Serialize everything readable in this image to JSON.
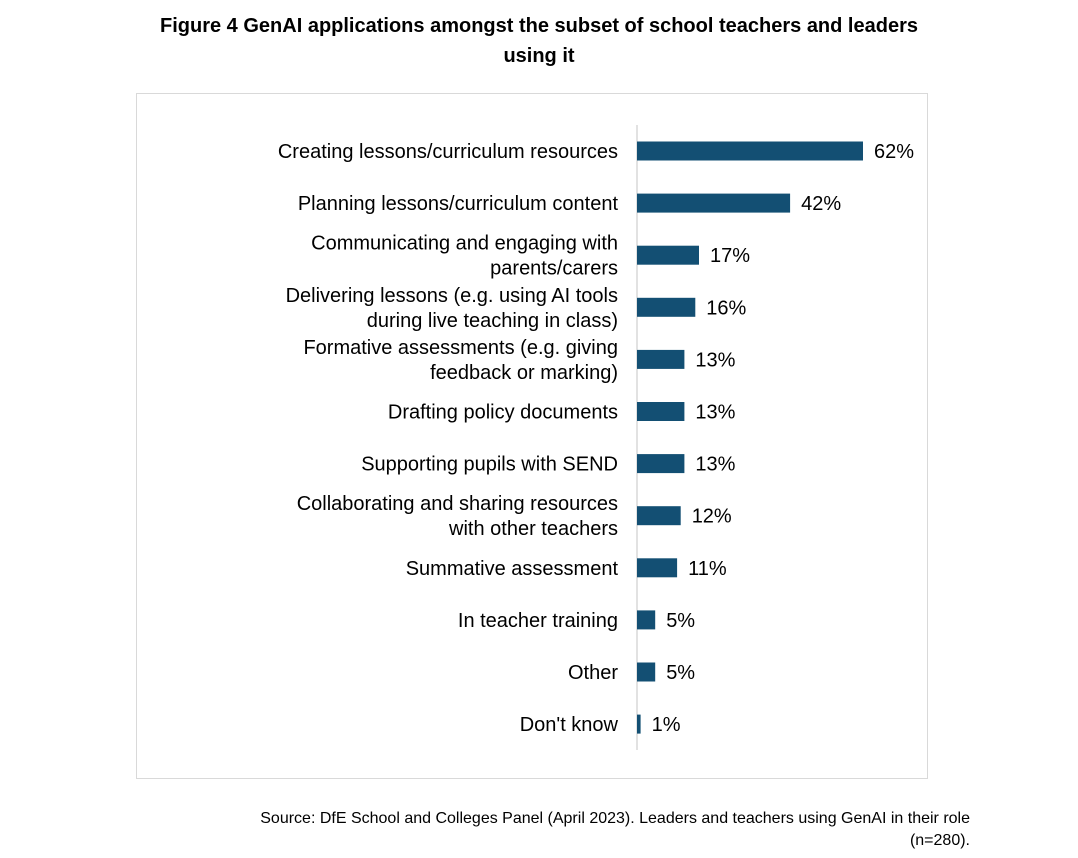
{
  "figure": {
    "title_line1": "Figure 4 GenAI applications amongst the subset of school teachers and leaders",
    "title_line2": "using it",
    "source_line1": "Source: DfE School and Colleges Panel (April 2023). Leaders and teachers using GenAI in their role",
    "source_line2": "(n=280)."
  },
  "colors": {
    "bar": "#134f73",
    "axis": "#d9d9d9",
    "frame": "#d9d9d9"
  },
  "chart_data": {
    "type": "bar",
    "orientation": "horizontal",
    "title": "Figure 4 GenAI applications amongst the subset of school teachers and leaders using it",
    "xlabel": "",
    "ylabel": "",
    "grid": false,
    "legend": "none",
    "xlim": [
      0,
      62
    ],
    "categories": [
      [
        "Creating lessons/curriculum resources"
      ],
      [
        "Planning lessons/curriculum content"
      ],
      [
        "Communicating and engaging with",
        "parents/carers"
      ],
      [
        "Delivering lessons (e.g. using AI tools",
        "during live teaching in class)"
      ],
      [
        "Formative assessments (e.g. giving",
        "feedback or marking)"
      ],
      [
        "Drafting policy documents"
      ],
      [
        "Supporting pupils with SEND"
      ],
      [
        "Collaborating and sharing resources",
        "with other teachers"
      ],
      [
        "Summative assessment"
      ],
      [
        "In teacher training"
      ],
      [
        "Other"
      ],
      [
        "Don't know"
      ]
    ],
    "values": [
      62,
      42,
      17,
      16,
      13,
      13,
      13,
      12,
      11,
      5,
      5,
      1
    ],
    "value_labels": [
      "62%",
      "42%",
      "17%",
      "16%",
      "13%",
      "13%",
      "13%",
      "12%",
      "11%",
      "5%",
      "5%",
      "1%"
    ]
  }
}
